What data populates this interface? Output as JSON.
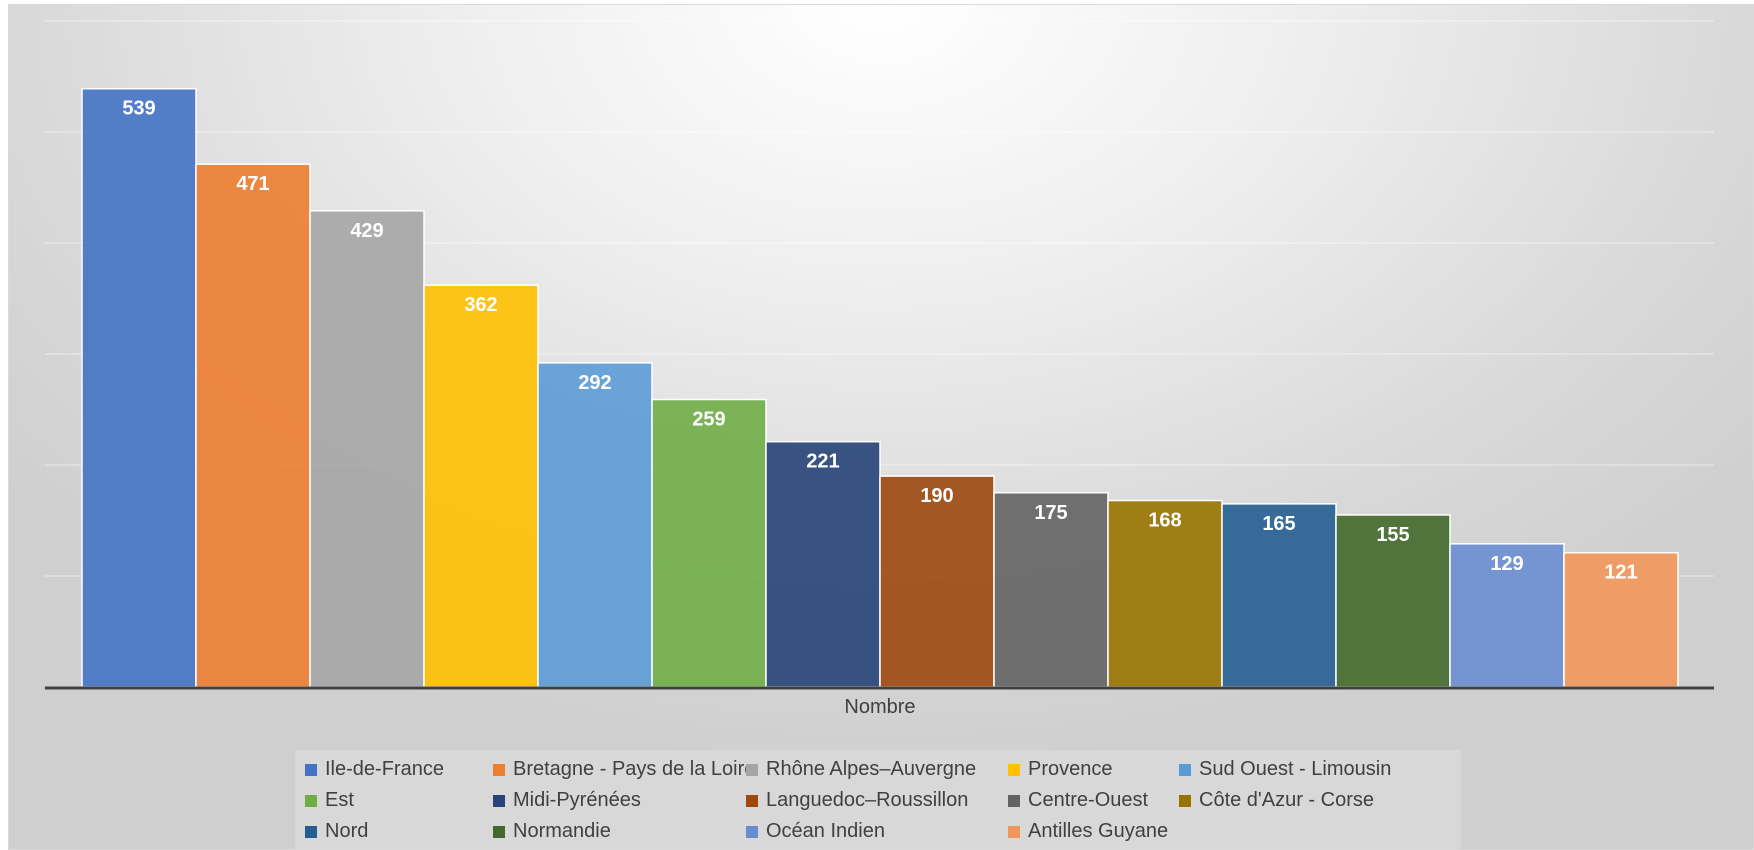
{
  "chart_data": {
    "type": "bar",
    "title": "",
    "xlabel": "Nombre",
    "ylabel": "",
    "ylim": [
      0,
      600
    ],
    "grid": true,
    "legend_position": "bottom",
    "categories": [
      "Nombre"
    ],
    "series": [
      {
        "name": "Ile-de-France",
        "values": [
          539
        ],
        "color": "#4472C4"
      },
      {
        "name": "Bretagne - Pays de la Loire",
        "values": [
          471
        ],
        "color": "#ED7D31"
      },
      {
        "name": "Rhône Alpes–Auvergne",
        "values": [
          429
        ],
        "color": "#A5A5A5"
      },
      {
        "name": "Provence",
        "values": [
          362
        ],
        "color": "#FFC000"
      },
      {
        "name": "Sud Ouest - Limousin",
        "values": [
          292
        ],
        "color": "#5B9BD5"
      },
      {
        "name": "Est",
        "values": [
          259
        ],
        "color": "#70AD47"
      },
      {
        "name": "Midi-Pyrénées",
        "values": [
          221
        ],
        "color": "#264478"
      },
      {
        "name": "Languedoc–Roussillon",
        "values": [
          190
        ],
        "color": "#9E480E"
      },
      {
        "name": "Centre-Ouest",
        "values": [
          175
        ],
        "color": "#636363"
      },
      {
        "name": "Côte d'Azur - Corse",
        "values": [
          168
        ],
        "color": "#997300"
      },
      {
        "name": "Nord",
        "values": [
          165
        ],
        "color": "#255E91"
      },
      {
        "name": "Normandie",
        "values": [
          155
        ],
        "color": "#43682B"
      },
      {
        "name": "Océan Indien",
        "values": [
          129
        ],
        "color": "#698ED0"
      },
      {
        "name": "Antilles Guyane",
        "values": [
          121
        ],
        "color": "#F1975A"
      }
    ]
  }
}
